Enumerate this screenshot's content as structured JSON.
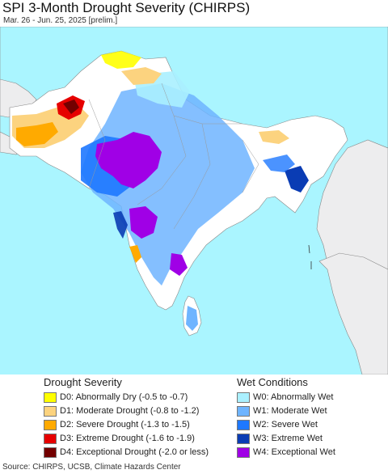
{
  "header": {
    "title": "SPI 3-Month Drought Severity (CHIRPS)",
    "subtitle": "Mar. 26 - Jun. 25, 2025 [prelim.]"
  },
  "legend": {
    "drought": {
      "title": "Drought Severity",
      "items": [
        {
          "label": "D0: Abnormally Dry (-0.5 to -0.7)",
          "color": "#ffff00"
        },
        {
          "label": "D1: Moderate Drought (-0.8 to -1.2)",
          "color": "#fcd37f"
        },
        {
          "label": "D2: Severe Drought (-1.3 to -1.5)",
          "color": "#ffaa00"
        },
        {
          "label": "D3: Extreme Drought (-1.6 to -1.9)",
          "color": "#e60000"
        },
        {
          "label": "D4: Exceptional Drought (-2.0 or less)",
          "color": "#730000"
        }
      ]
    },
    "wet": {
      "title": "Wet Conditions",
      "items": [
        {
          "label": "W0: Abnormally Wet",
          "color": "#aaf0ff"
        },
        {
          "label": "W1: Moderate Wet",
          "color": "#6eb4ff"
        },
        {
          "label": "W2: Severe Wet",
          "color": "#1e78ff"
        },
        {
          "label": "W3: Extreme Wet",
          "color": "#0a3cb4"
        },
        {
          "label": "W4: Exceptional Wet",
          "color": "#a000e6"
        }
      ]
    }
  },
  "footer": {
    "source": "Source: CHIRPS, UCSB, Climate Hazards Center"
  },
  "map_colors": {
    "ocean": "#aaf5ff",
    "land_outside": "#ededee",
    "land_inside": "#ffffff",
    "border": "#888888"
  }
}
